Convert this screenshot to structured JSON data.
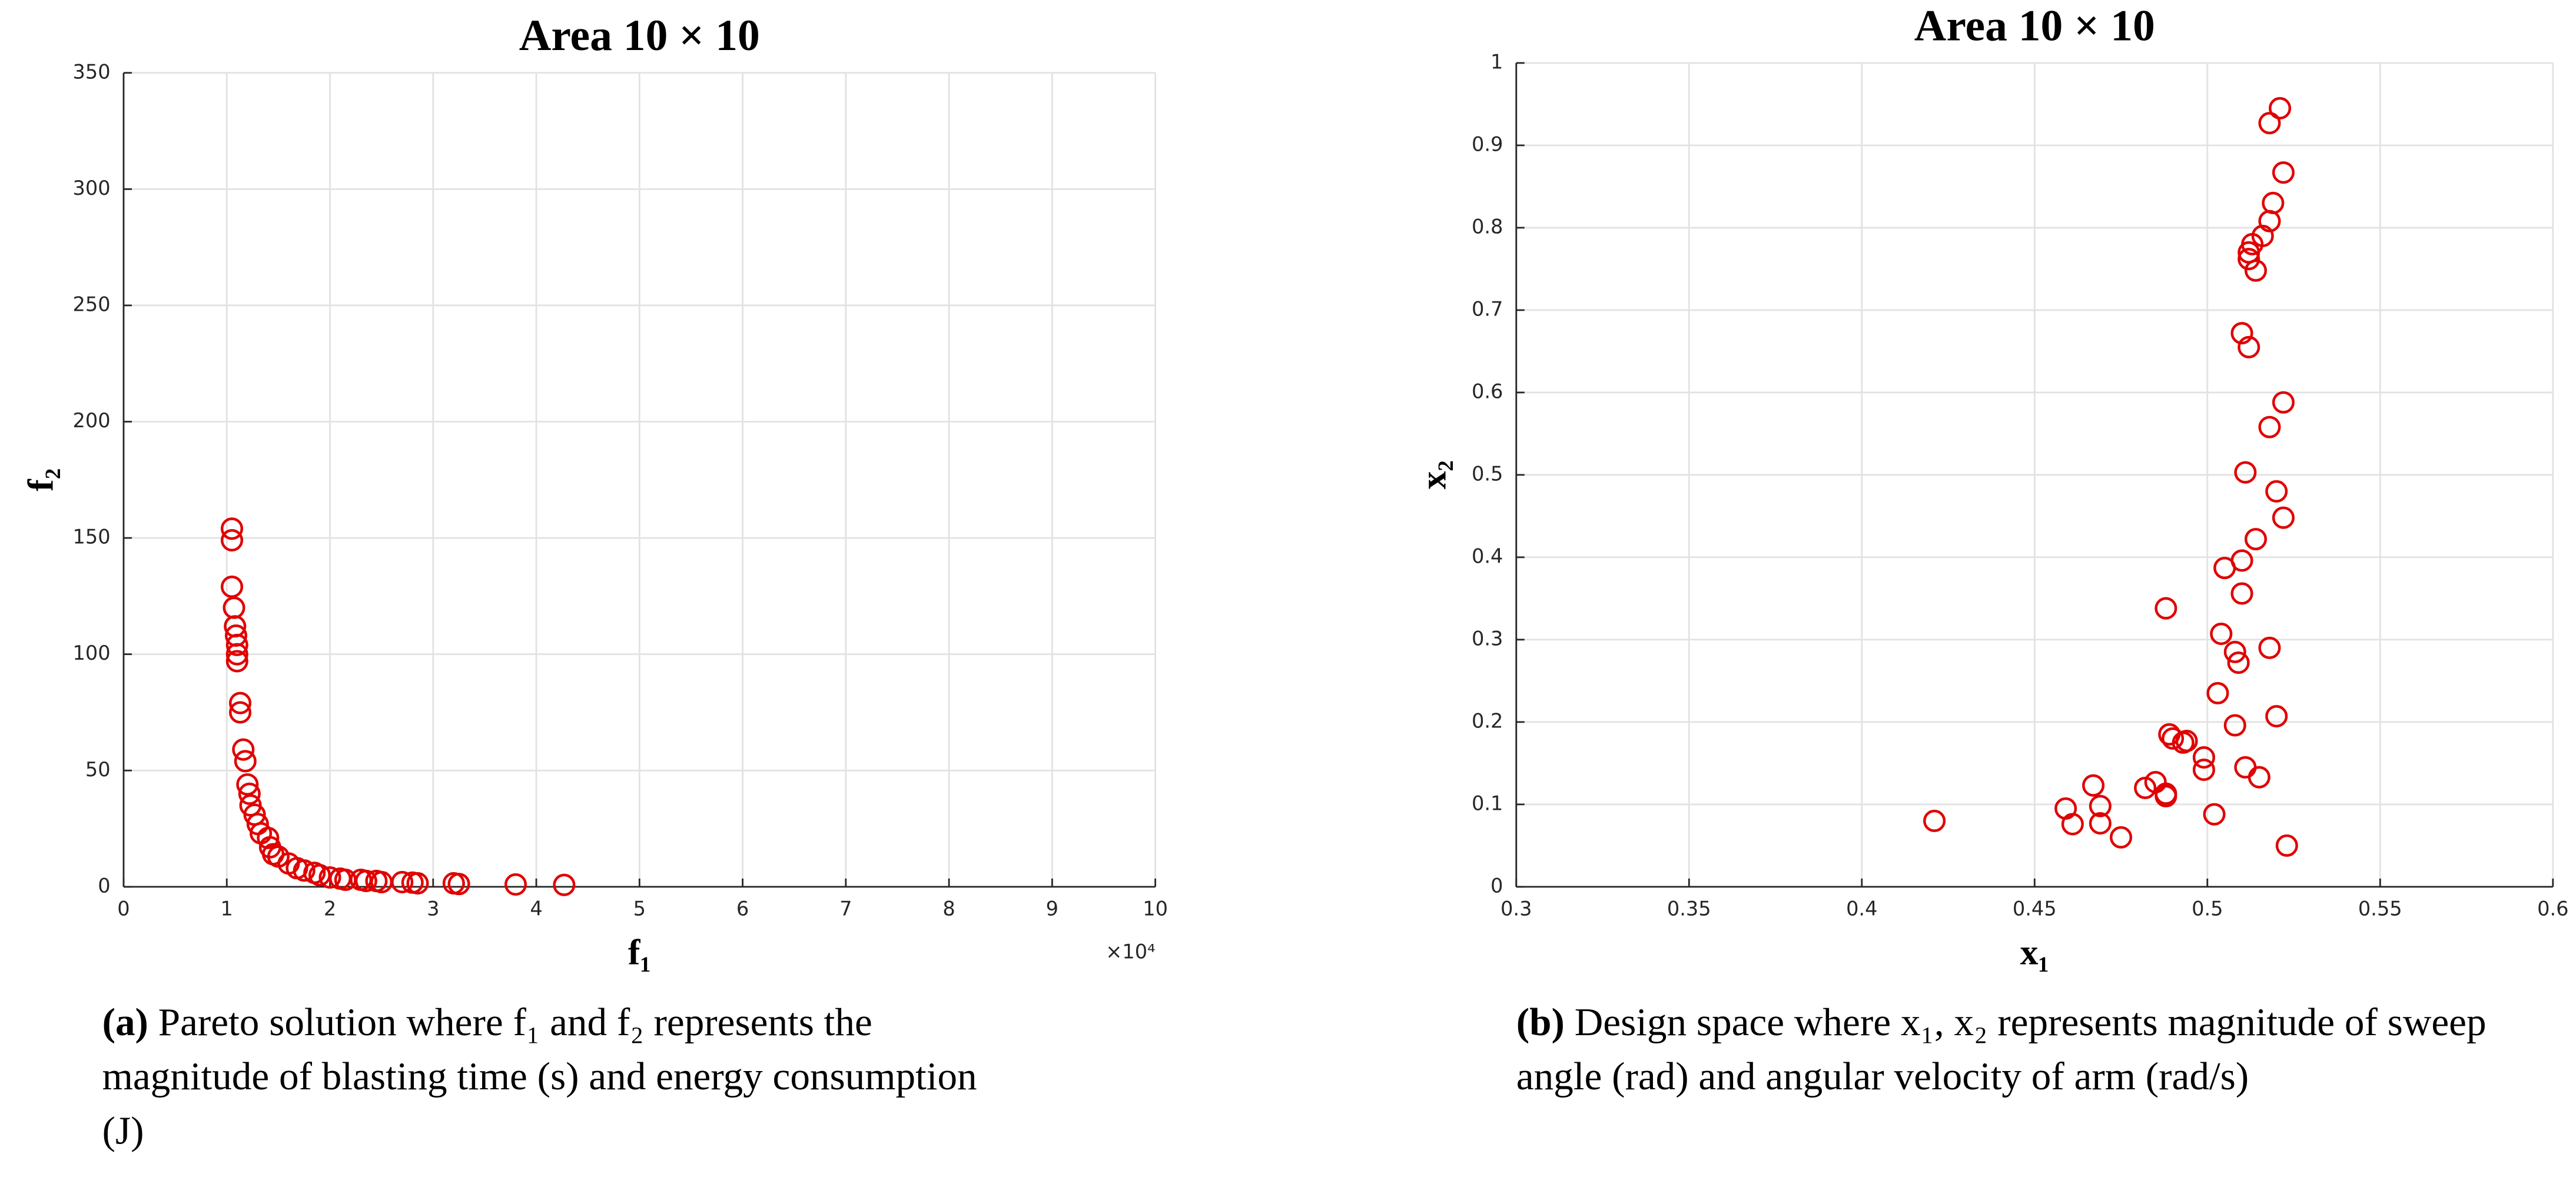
{
  "chart_data": [
    {
      "type": "scatter",
      "title": "Area 10 × 10",
      "x_label": "f₁",
      "y_label": "f₂",
      "x_exponent": "×10⁴",
      "caption_label": "(a)",
      "caption": "Pareto solution where f₁ and f₂ represents the magnitude of blasting time (s) and energy consumption (J)",
      "color": "#e00000",
      "grid": true,
      "xlim": [
        0,
        10
      ],
      "xticks": [
        0,
        1,
        2,
        3,
        4,
        5,
        6,
        7,
        8,
        9,
        10
      ],
      "ylim": [
        0,
        350
      ],
      "yticks": [
        0,
        50,
        100,
        150,
        200,
        250,
        300,
        350
      ],
      "x": [
        1.05,
        1.05,
        1.05,
        1.07,
        1.08,
        1.09,
        1.1,
        1.1,
        1.1,
        1.13,
        1.13,
        1.16,
        1.18,
        1.2,
        1.22,
        1.23,
        1.27,
        1.3,
        1.33,
        1.4,
        1.42,
        1.45,
        1.5,
        1.6,
        1.68,
        1.75,
        1.85,
        1.9,
        2.0,
        2.1,
        2.15,
        2.3,
        2.35,
        2.45,
        2.5,
        2.7,
        2.8,
        2.85,
        3.2,
        3.25,
        3.8,
        4.27
      ],
      "values": [
        154,
        149,
        129,
        120,
        112,
        108,
        104,
        100,
        97,
        79,
        75,
        59,
        54,
        44,
        40,
        35,
        31,
        27,
        23,
        21,
        17,
        14,
        13,
        10,
        8,
        7,
        6,
        5,
        4,
        3.5,
        3,
        3,
        2.5,
        2.5,
        2,
        2,
        1.8,
        1.5,
        1.5,
        1.2,
        1,
        0.8
      ]
    },
    {
      "type": "scatter",
      "title": "Area 10 × 10",
      "x_label": "x₁",
      "y_label": "x₂",
      "caption_label": "(b)",
      "caption": "Design space where x₁, x₂ represents magnitude of sweep angle (rad) and angular velocity of arm (rad/s)",
      "color": "#e00000",
      "grid": true,
      "xlim": [
        0.3,
        0.6
      ],
      "xticks": [
        0.3,
        0.35,
        0.4,
        0.45,
        0.5,
        0.55,
        0.6
      ],
      "ylim": [
        0,
        1
      ],
      "yticks": [
        0,
        0.1,
        0.2,
        0.3,
        0.4,
        0.5,
        0.6,
        0.7,
        0.8,
        0.9,
        1
      ],
      "x": [
        0.421,
        0.459,
        0.461,
        0.467,
        0.469,
        0.469,
        0.475,
        0.482,
        0.485,
        0.488,
        0.488,
        0.488,
        0.489,
        0.49,
        0.493,
        0.494,
        0.499,
        0.499,
        0.502,
        0.503,
        0.504,
        0.505,
        0.508,
        0.508,
        0.509,
        0.51,
        0.51,
        0.51,
        0.511,
        0.511,
        0.512,
        0.512,
        0.512,
        0.513,
        0.514,
        0.514,
        0.515,
        0.516,
        0.518,
        0.518,
        0.518,
        0.519,
        0.518,
        0.52,
        0.52,
        0.521,
        0.522,
        0.522,
        0.522,
        0.523
      ],
      "values": [
        0.08,
        0.095,
        0.076,
        0.123,
        0.098,
        0.077,
        0.06,
        0.12,
        0.127,
        0.113,
        0.11,
        0.338,
        0.185,
        0.18,
        0.175,
        0.177,
        0.142,
        0.157,
        0.088,
        0.235,
        0.307,
        0.387,
        0.196,
        0.285,
        0.272,
        0.356,
        0.396,
        0.672,
        0.503,
        0.145,
        0.655,
        0.77,
        0.762,
        0.78,
        0.422,
        0.748,
        0.133,
        0.79,
        0.29,
        0.808,
        0.558,
        0.83,
        0.927,
        0.207,
        0.48,
        0.945,
        0.448,
        0.588,
        0.867,
        0.05
      ]
    }
  ]
}
